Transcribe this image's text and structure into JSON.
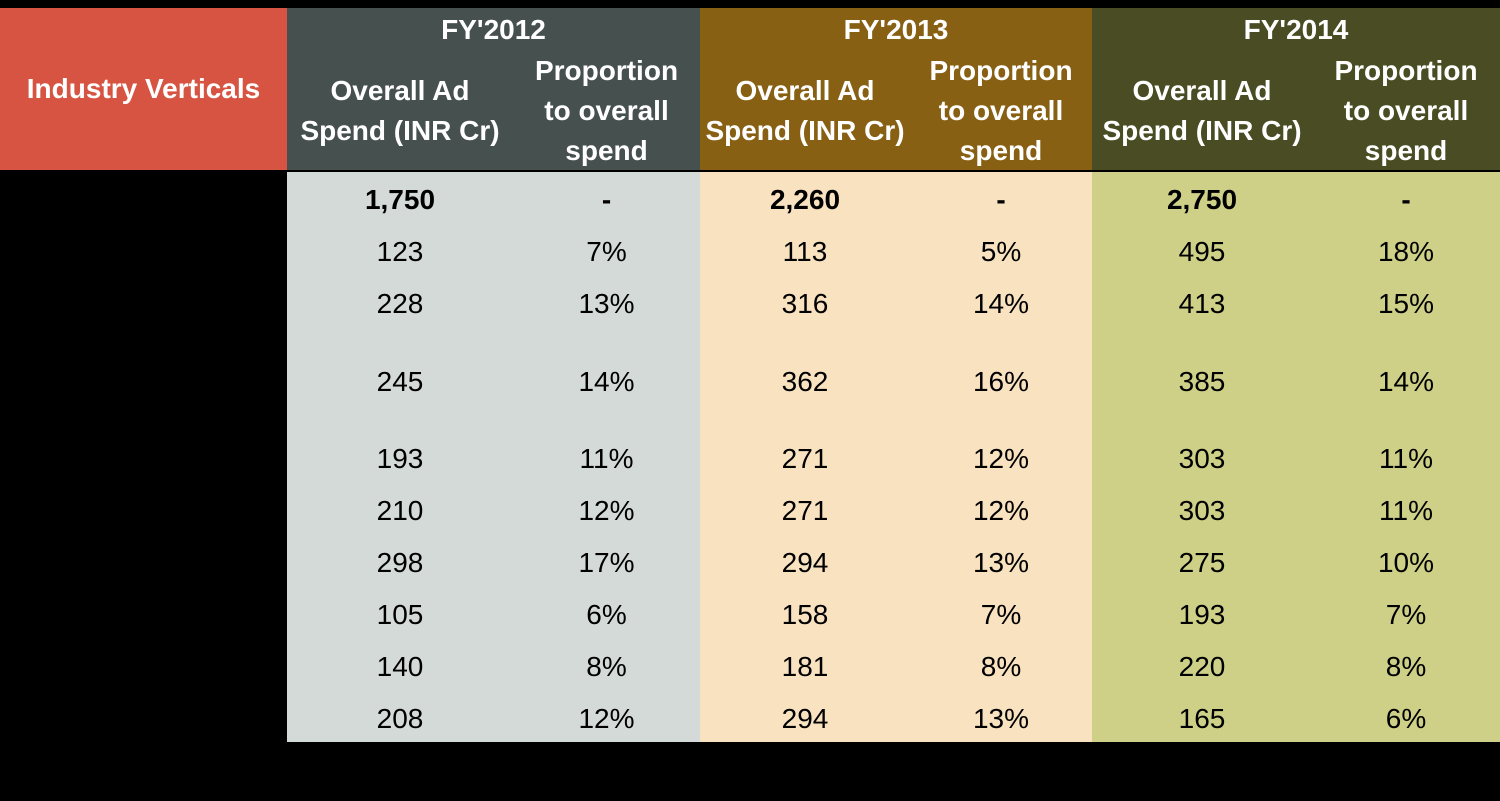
{
  "chart_data": {
    "type": "table",
    "row_header_label": "Industry Verticals",
    "row_labels": [],
    "years": [
      {
        "label": "FY'2012",
        "header_color": "#46504f",
        "band_color": "#d4dad8",
        "col1_label": "Overall Ad\nSpend (INR Cr)",
        "col2_label": "Proportion\nto overall\nspend",
        "total": "1,750",
        "total_proportion": "-",
        "spend": [
          "123",
          "228",
          "245",
          "193",
          "210",
          "298",
          "105",
          "140",
          "208"
        ],
        "proportion": [
          "7%",
          "13%",
          "14%",
          "11%",
          "12%",
          "17%",
          "6%",
          "8%",
          "12%"
        ]
      },
      {
        "label": "FY'2013",
        "header_color": "#876013",
        "band_color": "#f8e2bf",
        "col1_label": "Overall Ad\nSpend (INR Cr)",
        "col2_label": "Proportion\nto overall\nspend",
        "total": "2,260",
        "total_proportion": "-",
        "spend": [
          "113",
          "316",
          "362",
          "271",
          "271",
          "294",
          "158",
          "181",
          "294"
        ],
        "proportion": [
          "5%",
          "14%",
          "16%",
          "12%",
          "12%",
          "13%",
          "7%",
          "8%",
          "13%"
        ]
      },
      {
        "label": "FY'2014",
        "header_color": "#4a4d24",
        "band_color": "#cdd086",
        "col1_label": "Overall Ad\nSpend (INR Cr)",
        "col2_label": "Proportion\nto overall\nspend",
        "total": "2,750",
        "total_proportion": "-",
        "spend": [
          "495",
          "413",
          "385",
          "303",
          "303",
          "275",
          "193",
          "220",
          "165"
        ],
        "proportion": [
          "18%",
          "15%",
          "14%",
          "11%",
          "11%",
          "10%",
          "7%",
          "8%",
          "6%"
        ]
      }
    ]
  },
  "colors": {
    "row_header_bg": "#d65441",
    "page_bg": "#000000",
    "header_text": "#ffffff",
    "cell_text": "#000000"
  }
}
